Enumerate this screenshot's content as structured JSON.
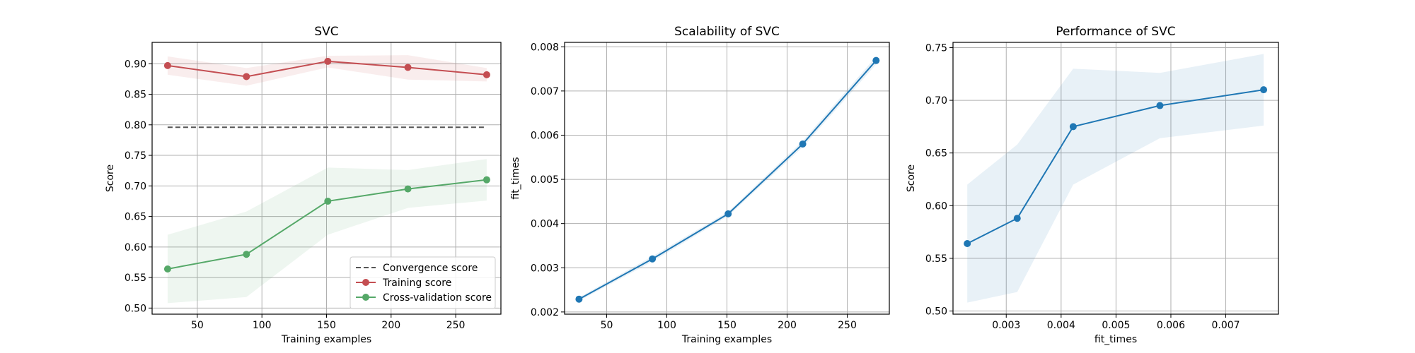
{
  "chart_data": [
    {
      "type": "line",
      "title": "SVC",
      "xlabel": "Training examples",
      "ylabel": "Score",
      "xlim": [
        15,
        285
      ],
      "ylim": [
        0.49,
        0.935
      ],
      "xticks": [
        50,
        100,
        150,
        200,
        250
      ],
      "yticks": [
        0.5,
        0.55,
        0.6,
        0.65,
        0.7,
        0.75,
        0.8,
        0.85,
        0.9
      ],
      "grid": true,
      "legend_position": "lower-right",
      "series": [
        {
          "name": "Convergence score",
          "style": "dashed",
          "color": "#555555",
          "x": [
            27,
            274
          ],
          "y": [
            0.796,
            0.796
          ]
        },
        {
          "name": "Training score",
          "style": "solid-marker",
          "color": "#c44e52",
          "x": [
            27,
            88,
            151,
            213,
            274
          ],
          "y": [
            0.897,
            0.879,
            0.904,
            0.894,
            0.882
          ],
          "band_upper": [
            0.912,
            0.893,
            0.913,
            0.914,
            0.893
          ],
          "band_lower": [
            0.882,
            0.864,
            0.894,
            0.874,
            0.871
          ]
        },
        {
          "name": "Cross-validation score",
          "style": "solid-marker",
          "color": "#55a868",
          "x": [
            27,
            88,
            151,
            213,
            274
          ],
          "y": [
            0.564,
            0.588,
            0.675,
            0.695,
            0.71
          ],
          "band_upper": [
            0.62,
            0.658,
            0.73,
            0.726,
            0.744
          ],
          "band_lower": [
            0.508,
            0.518,
            0.62,
            0.664,
            0.676
          ]
        }
      ]
    },
    {
      "type": "line",
      "title": "Scalability of SVC",
      "xlabel": "Training examples",
      "ylabel": "fit_times",
      "xlim": [
        15,
        285
      ],
      "ylim": [
        0.00195,
        0.0081
      ],
      "xticks": [
        50,
        100,
        150,
        200,
        250
      ],
      "yticks": [
        0.002,
        0.003,
        0.004,
        0.005,
        0.006,
        0.007,
        0.008
      ],
      "grid": true,
      "series": [
        {
          "color": "#1f77b4",
          "x": [
            27,
            88,
            151,
            213,
            274
          ],
          "y": [
            0.00229,
            0.0032,
            0.00422,
            0.0058,
            0.00769
          ],
          "band_upper": [
            0.00233,
            0.00326,
            0.00427,
            0.00587,
            0.00778
          ],
          "band_lower": [
            0.00225,
            0.00314,
            0.00417,
            0.00573,
            0.0076
          ]
        }
      ]
    },
    {
      "type": "line",
      "title": "Performance of SVC",
      "xlabel": "fit_times",
      "ylabel": "Score",
      "xlim": [
        0.00203,
        0.00796
      ],
      "ylim": [
        0.497,
        0.755
      ],
      "xticks": [
        0.003,
        0.004,
        0.005,
        0.006,
        0.007
      ],
      "yticks": [
        0.5,
        0.55,
        0.6,
        0.65,
        0.7,
        0.75
      ],
      "grid": true,
      "series": [
        {
          "color": "#1f77b4",
          "x": [
            0.00229,
            0.0032,
            0.00422,
            0.0058,
            0.00769
          ],
          "y": [
            0.564,
            0.588,
            0.675,
            0.695,
            0.71
          ],
          "band_upper": [
            0.62,
            0.658,
            0.73,
            0.726,
            0.744
          ],
          "band_lower": [
            0.508,
            0.518,
            0.62,
            0.664,
            0.676
          ]
        }
      ]
    }
  ]
}
